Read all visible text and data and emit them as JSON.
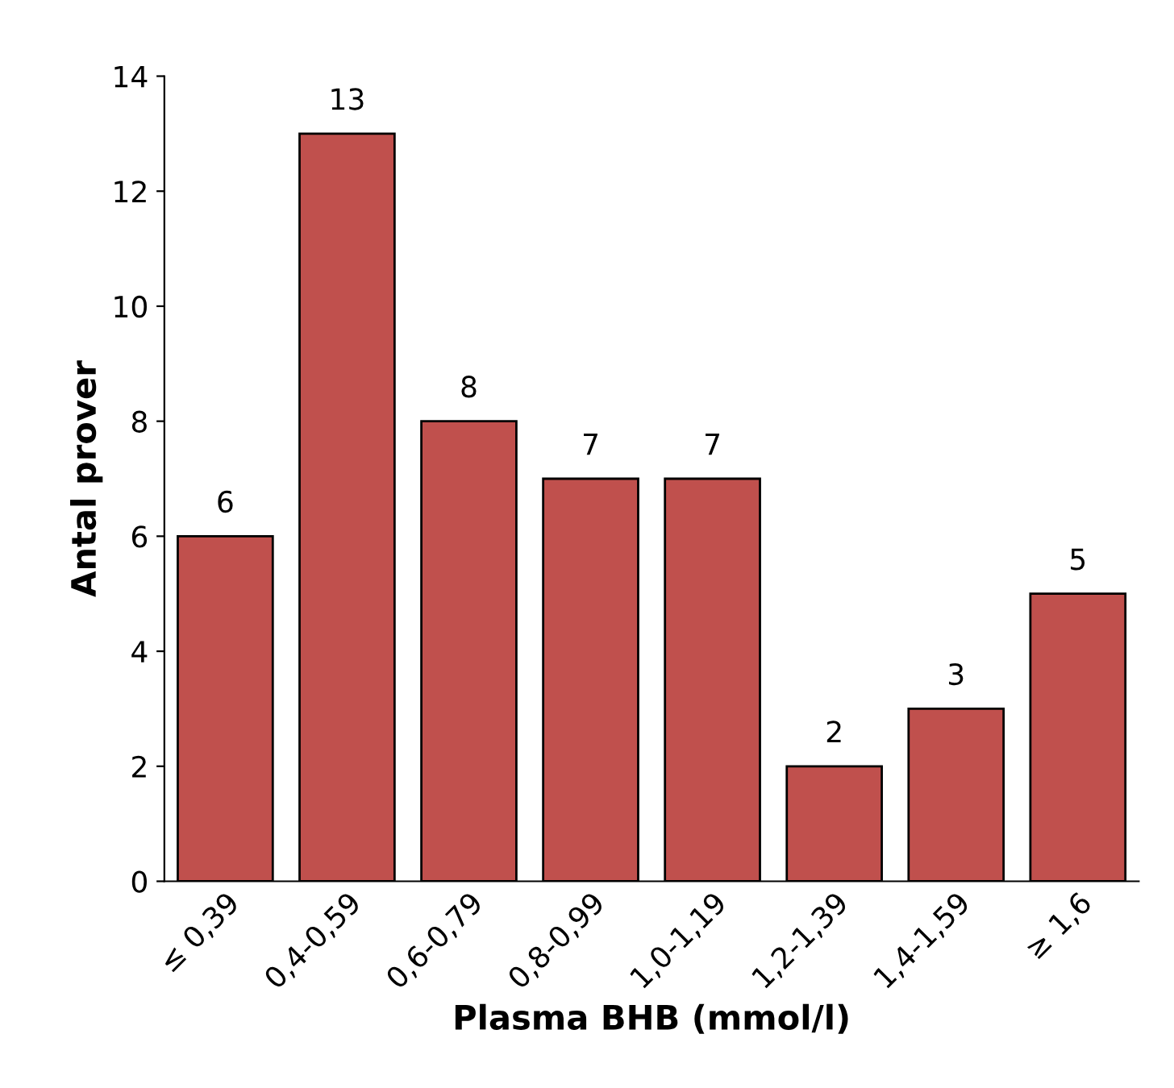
{
  "chart_data": {
    "type": "bar",
    "xlabel": "Plasma BHB (mmol/l)",
    "ylabel": "Antal prover",
    "categories": [
      "≤ 0,39",
      "0,4-0,59",
      "0,6-0,79",
      "0,8-0,99",
      "1,0-1,19",
      "1,2-1,39",
      "1,4-1,59",
      "≥ 1,6"
    ],
    "values": [
      6,
      13,
      8,
      7,
      7,
      2,
      3,
      5
    ],
    "color": "#c0504d",
    "ylim": [
      0,
      14
    ],
    "yticks": [
      0,
      2,
      4,
      6,
      8,
      10,
      12,
      14
    ],
    "grid": false,
    "data_labels": true
  }
}
